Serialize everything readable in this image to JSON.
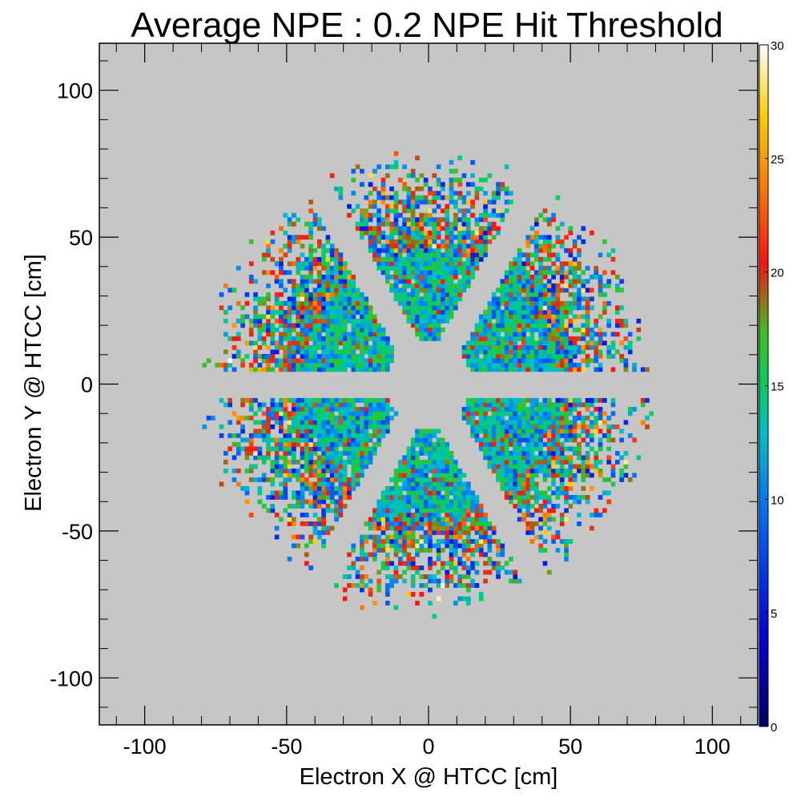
{
  "chart_data": {
    "type": "heatmap",
    "title": "Average NPE : 0.2 NPE Hit Threshold",
    "xlabel": "Electron X @ HTCC [cm]",
    "ylabel": "Electron Y @ HTCC [cm]",
    "xlim": [
      -116,
      116
    ],
    "ylim": [
      -116,
      116
    ],
    "xticks": [
      -100,
      -50,
      0,
      50,
      100
    ],
    "yticks": [
      -100,
      -50,
      0,
      50,
      100
    ],
    "zlim": [
      0,
      30
    ],
    "zticks": [
      0,
      5,
      10,
      15,
      20,
      25,
      30
    ],
    "colorscale": "rainbow",
    "bin_size_cm": 1.5,
    "frame_fill": "#c6c6c6",
    "sectors_deg": [
      60,
      120,
      180,
      240,
      300,
      360
    ],
    "grid": false
  }
}
